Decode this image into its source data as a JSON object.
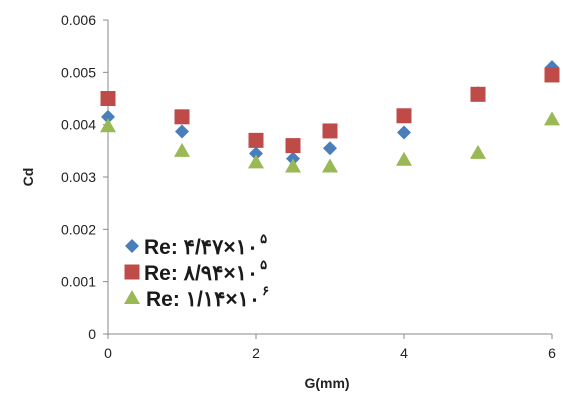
{
  "chart_data": {
    "type": "scatter",
    "title": "",
    "xlabel": "G(mm)",
    "ylabel": "Cd",
    "xlim": [
      0,
      6
    ],
    "ylim": [
      0,
      0.006
    ],
    "x_ticks": [
      "0",
      "2",
      "4",
      "6"
    ],
    "y_ticks": [
      "0",
      "0.001",
      "0.002",
      "0.003",
      "0.004",
      "0.005",
      "0.006"
    ],
    "grid": false,
    "legend_position": "bottom-left",
    "series": [
      {
        "name": "Re: ۴/۴۷×۱۰",
        "exponent": "۵",
        "marker": "diamond",
        "color": "#4a7ebb",
        "x": [
          0,
          1,
          2,
          2.5,
          3,
          4,
          5,
          6
        ],
        "y": [
          0.00415,
          0.00387,
          0.00345,
          0.00335,
          0.00355,
          0.00385,
          0.0046,
          0.0051
        ]
      },
      {
        "name": "Re: ۸/۹۴×۱۰",
        "exponent": "۵",
        "marker": "square",
        "color": "#be4b48",
        "x": [
          0,
          1,
          2,
          2.5,
          3,
          4,
          5,
          6
        ],
        "y": [
          0.0045,
          0.00415,
          0.0037,
          0.0036,
          0.00388,
          0.00417,
          0.00458,
          0.00495
        ]
      },
      {
        "name": "Re: ۱/۱۴×۱۰",
        "exponent": "۶",
        "marker": "triangle",
        "color": "#98b954",
        "x": [
          0,
          1,
          2,
          2.5,
          3,
          4,
          5,
          6
        ],
        "y": [
          0.00397,
          0.0035,
          0.00328,
          0.0032,
          0.0032,
          0.00333,
          0.00346,
          0.0041
        ]
      }
    ]
  }
}
